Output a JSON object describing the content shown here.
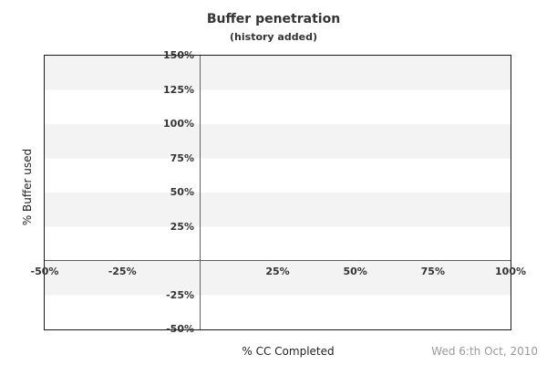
{
  "chart_data": {
    "type": "scatter",
    "title": "Buffer penetration",
    "subtitle": "(history added)",
    "xlabel": "% CC Completed",
    "ylabel": "% Buffer used",
    "footer_date": "Wed 6:th Oct, 2010",
    "xlim": [
      -50,
      100
    ],
    "ylim": [
      -50,
      150
    ],
    "xticks": [
      {
        "value": -50,
        "label": "-50%"
      },
      {
        "value": -25,
        "label": "-25%"
      },
      {
        "value": 25,
        "label": "25%"
      },
      {
        "value": 50,
        "label": "50%"
      },
      {
        "value": 75,
        "label": "75%"
      },
      {
        "value": 100,
        "label": "100%"
      }
    ],
    "yticks": [
      {
        "value": 150,
        "label": "150%"
      },
      {
        "value": 125,
        "label": "125%"
      },
      {
        "value": 100,
        "label": "100%"
      },
      {
        "value": 75,
        "label": "75%"
      },
      {
        "value": 50,
        "label": "50%"
      },
      {
        "value": 25,
        "label": "25%"
      },
      {
        "value": -25,
        "label": "-25%"
      },
      {
        "value": -50,
        "label": "-50%"
      }
    ],
    "series": [],
    "grid": "horizontal bands shaded in alternating 25% intervals",
    "legend": "none",
    "zero_axis_lines": true
  },
  "colors": {
    "band": "#f3f3f3",
    "plot_border": "#1b1b1b",
    "zero_line": "#5f5f5f",
    "title_text": "#333333",
    "tick_text": "#333333",
    "axis_label_text": "#222222",
    "date_text": "#999999",
    "background": "#ffffff"
  }
}
